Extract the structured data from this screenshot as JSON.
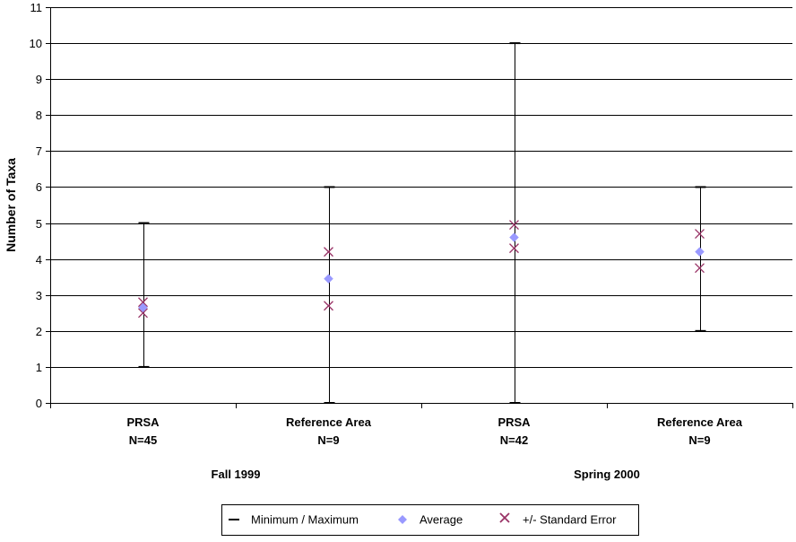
{
  "chart_data": {
    "type": "scatter",
    "title": "",
    "ylabel": "Number of Taxa",
    "ylim": [
      0,
      11
    ],
    "y_ticks": [
      0,
      1,
      2,
      3,
      4,
      5,
      6,
      7,
      8,
      9,
      10,
      11
    ],
    "grid": true,
    "legend_position": "bottom",
    "categories": [
      {
        "name": "PRSA",
        "n_label": "N=45",
        "group": "Fall 1999"
      },
      {
        "name": "Reference Area",
        "n_label": "N=9",
        "group": "Fall 1999"
      },
      {
        "name": "PRSA",
        "n_label": "N=42",
        "group": "Spring 2000"
      },
      {
        "name": "Reference Area",
        "n_label": "N=9",
        "group": "Spring 2000"
      }
    ],
    "groups": [
      "Fall 1999",
      "Spring 2000"
    ],
    "series": [
      {
        "name": "Minimum / Maximum",
        "min": [
          1,
          0,
          0,
          2
        ],
        "max": [
          5,
          6,
          10,
          6
        ]
      },
      {
        "name": "Average",
        "values": [
          2.65,
          3.45,
          4.6,
          4.2
        ]
      },
      {
        "name": "+/- Standard Error",
        "upper": [
          2.8,
          4.2,
          4.95,
          4.7
        ],
        "lower": [
          2.5,
          2.7,
          4.3,
          3.75
        ]
      }
    ],
    "colors": {
      "minmax": "#000000",
      "average": "#9999ff",
      "stderr": "#993366",
      "grid": "#000000"
    }
  }
}
